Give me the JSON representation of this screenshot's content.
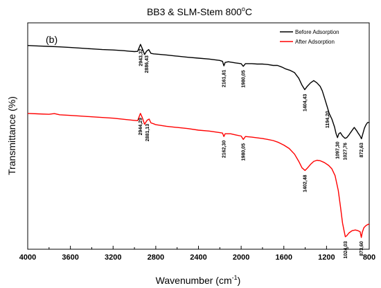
{
  "chart_data": {
    "type": "line",
    "title": "BB3 & SLM-Stem 800",
    "title_sup": "o",
    "title_suffix": "C",
    "panel_label": "(b)",
    "xlabel": "Wavenumber (cm",
    "xlabel_sup": "-1",
    "xlabel_suffix": ")",
    "ylabel": "Transmittance (%)",
    "xlim": [
      4000,
      800
    ],
    "xticks": [
      "4000",
      "3600",
      "3200",
      "2800",
      "2400",
      "2000",
      "1600",
      "1200",
      "800"
    ],
    "xtick_values": [
      4000,
      3600,
      3200,
      2800,
      2400,
      2000,
      1600,
      1200,
      800
    ],
    "yticks_shown": false,
    "grid": false,
    "legend_position": "top-right",
    "series": [
      {
        "name": "Before Adsorption",
        "color": "#000000",
        "points": [
          [
            4000,
            90
          ],
          [
            3900,
            89.8
          ],
          [
            3800,
            89.6
          ],
          [
            3700,
            89.4
          ],
          [
            3600,
            89.1
          ],
          [
            3500,
            88.8
          ],
          [
            3400,
            88.5
          ],
          [
            3300,
            88.2
          ],
          [
            3200,
            88
          ],
          [
            3100,
            87.7
          ],
          [
            3050,
            87.5
          ],
          [
            3000,
            87.3
          ],
          [
            2970,
            87.4
          ],
          [
            2943,
            90.5
          ],
          [
            2925,
            88.5
          ],
          [
            2905,
            86
          ],
          [
            2886,
            87.5
          ],
          [
            2866,
            88.2
          ],
          [
            2845,
            86.5
          ],
          [
            2820,
            86.3
          ],
          [
            2800,
            86.2
          ],
          [
            2700,
            85.8
          ],
          [
            2600,
            85.3
          ],
          [
            2500,
            84.8
          ],
          [
            2400,
            84.4
          ],
          [
            2300,
            84
          ],
          [
            2200,
            83.4
          ],
          [
            2175,
            83
          ],
          [
            2162,
            81
          ],
          [
            2150,
            82.5
          ],
          [
            2120,
            82.8
          ],
          [
            2050,
            82.3
          ],
          [
            2000,
            82
          ],
          [
            1980,
            80.8
          ],
          [
            1960,
            82
          ],
          [
            1900,
            82
          ],
          [
            1850,
            81.8
          ],
          [
            1800,
            81.8
          ],
          [
            1750,
            81.6
          ],
          [
            1700,
            81.2
          ],
          [
            1660,
            81.2
          ],
          [
            1620,
            80.5
          ],
          [
            1580,
            79.6
          ],
          [
            1540,
            79
          ],
          [
            1500,
            78
          ],
          [
            1460,
            75.5
          ],
          [
            1430,
            72.5
          ],
          [
            1404,
            70.5
          ],
          [
            1380,
            72
          ],
          [
            1350,
            73.5
          ],
          [
            1320,
            74.5
          ],
          [
            1290,
            73.5
          ],
          [
            1260,
            72
          ],
          [
            1240,
            70
          ],
          [
            1220,
            67
          ],
          [
            1194,
            63
          ],
          [
            1175,
            60
          ],
          [
            1150,
            57.5
          ],
          [
            1125,
            54
          ],
          [
            1110,
            51
          ],
          [
            1097,
            49.3
          ],
          [
            1085,
            51
          ],
          [
            1070,
            51.5
          ],
          [
            1050,
            50
          ],
          [
            1027,
            49
          ],
          [
            1010,
            49.3
          ],
          [
            990,
            50.5
          ],
          [
            960,
            52.5
          ],
          [
            940,
            53.8
          ],
          [
            920,
            52.5
          ],
          [
            900,
            51
          ],
          [
            885,
            50
          ],
          [
            873,
            48.8
          ],
          [
            860,
            51
          ],
          [
            845,
            53.5
          ],
          [
            830,
            55
          ],
          [
            815,
            56
          ],
          [
            800,
            56
          ]
        ]
      },
      {
        "name": "After Adsorption",
        "color": "#ff0000",
        "points": [
          [
            4000,
            60
          ],
          [
            3900,
            59.8
          ],
          [
            3800,
            59.6
          ],
          [
            3750,
            59.9
          ],
          [
            3700,
            59.4
          ],
          [
            3600,
            59.1
          ],
          [
            3500,
            58.8
          ],
          [
            3400,
            58.5
          ],
          [
            3300,
            58.2
          ],
          [
            3200,
            57.9
          ],
          [
            3100,
            57.4
          ],
          [
            3000,
            56.9
          ],
          [
            2970,
            56.8
          ],
          [
            2944,
            60
          ],
          [
            2925,
            58
          ],
          [
            2905,
            55.2
          ],
          [
            2881,
            57
          ],
          [
            2862,
            57.5
          ],
          [
            2845,
            55.8
          ],
          [
            2820,
            55.4
          ],
          [
            2800,
            55
          ],
          [
            2700,
            54.3
          ],
          [
            2600,
            53.8
          ],
          [
            2500,
            53.3
          ],
          [
            2400,
            52.6
          ],
          [
            2300,
            52.2
          ],
          [
            2200,
            51.5
          ],
          [
            2175,
            51.3
          ],
          [
            2162,
            49.8
          ],
          [
            2150,
            51
          ],
          [
            2100,
            51
          ],
          [
            2050,
            50.5
          ],
          [
            2000,
            50
          ],
          [
            1980,
            48.5
          ],
          [
            1960,
            49.8
          ],
          [
            1900,
            49.5
          ],
          [
            1850,
            49.2
          ],
          [
            1800,
            48.9
          ],
          [
            1750,
            48.5
          ],
          [
            1700,
            48
          ],
          [
            1650,
            47.2
          ],
          [
            1600,
            46
          ],
          [
            1550,
            44.5
          ],
          [
            1500,
            42
          ],
          [
            1460,
            38.8
          ],
          [
            1430,
            36
          ],
          [
            1402,
            34.8
          ],
          [
            1380,
            35.8
          ],
          [
            1350,
            37.5
          ],
          [
            1320,
            38.8
          ],
          [
            1290,
            39.3
          ],
          [
            1260,
            39.1
          ],
          [
            1220,
            38.3
          ],
          [
            1180,
            37
          ],
          [
            1150,
            35.5
          ],
          [
            1120,
            32.5
          ],
          [
            1090,
            26
          ],
          [
            1070,
            19
          ],
          [
            1050,
            11.5
          ],
          [
            1035,
            8
          ],
          [
            1024,
            5.5
          ],
          [
            1010,
            6
          ],
          [
            990,
            7.2
          ],
          [
            960,
            8.2
          ],
          [
            930,
            8.5
          ],
          [
            905,
            8.2
          ],
          [
            885,
            7.7
          ],
          [
            874,
            5.2
          ],
          [
            865,
            7.5
          ],
          [
            850,
            9.5
          ],
          [
            830,
            10.5
          ],
          [
            810,
            11
          ],
          [
            800,
            11
          ]
        ]
      }
    ],
    "annotations": [
      {
        "text": "2943,32",
        "x": 2943,
        "y": 89.5,
        "series": 0
      },
      {
        "text": "2886,43",
        "x": 2886,
        "y": 86.5,
        "series": 0
      },
      {
        "text": "2161,81",
        "x": 2162,
        "y": 80.2,
        "series": 0
      },
      {
        "text": "1980,05",
        "x": 1980,
        "y": 80,
        "series": 0
      },
      {
        "text": "1404,43",
        "x": 1404,
        "y": 69.5,
        "series": 0
      },
      {
        "text": "1194,20",
        "x": 1194,
        "y": 62,
        "series": 0
      },
      {
        "text": "1097,30",
        "x": 1097,
        "y": 48.5,
        "series": 0
      },
      {
        "text": "1027,76",
        "x": 1027,
        "y": 48,
        "series": 0
      },
      {
        "text": "872,63",
        "x": 873,
        "y": 48,
        "series": 0
      },
      {
        "text": "2944,29",
        "x": 2944,
        "y": 59,
        "series": 1
      },
      {
        "text": "2881,13",
        "x": 2881,
        "y": 56.3,
        "series": 1
      },
      {
        "text": "2162,30",
        "x": 2162,
        "y": 49,
        "series": 1
      },
      {
        "text": "1980,05",
        "x": 1980,
        "y": 47.7,
        "series": 1
      },
      {
        "text": "1402,48",
        "x": 1402,
        "y": 33.8,
        "series": 1
      },
      {
        "text": "1024,03",
        "x": 1024,
        "y": 4.5,
        "series": 1
      },
      {
        "text": "873,60",
        "x": 874,
        "y": 4.5,
        "series": 1
      }
    ]
  }
}
